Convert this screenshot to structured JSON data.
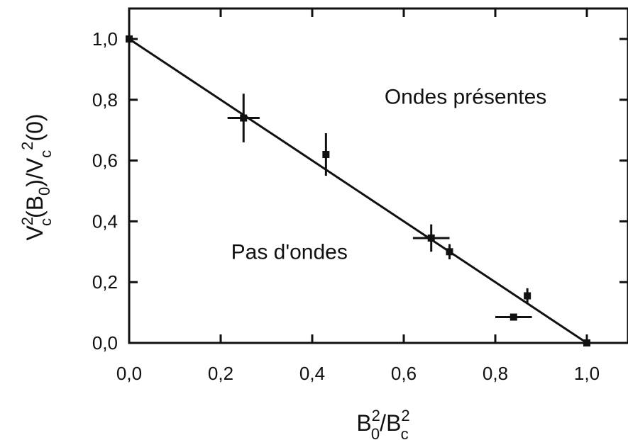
{
  "chart_data": {
    "type": "scatter",
    "xlabel": {
      "base1": "B",
      "sup1": "2",
      "sub1": "0",
      "slash": "/",
      "base2": "B",
      "sup2": "2",
      "sub2": "c"
    },
    "ylabel": {
      "base1": "V",
      "sup1": "2",
      "sub1": "c",
      "mid": "(B",
      "sub2": "0",
      "slash": ")/V",
      "sub3": "c",
      "sup3": "2",
      "tail": "(0)"
    },
    "xlim": [
      0,
      1.1
    ],
    "ylim": [
      0,
      1.1
    ],
    "xticks": [
      0,
      0.2,
      0.4,
      0.6,
      0.8,
      1.0
    ],
    "yticks": [
      0,
      0.2,
      0.4,
      0.6,
      0.8,
      1.0
    ],
    "xtick_labels": [
      "0,0",
      "0,2",
      "0,4",
      "0,6",
      "0,8",
      "1,0"
    ],
    "ytick_labels": [
      "0,0",
      "0,2",
      "0,4",
      "0,6",
      "0,8",
      "1,0"
    ],
    "grid": false,
    "points": [
      {
        "x": 0.0,
        "y": 1.0,
        "xerr": 0,
        "yerr": 0
      },
      {
        "x": 0.25,
        "y": 0.74,
        "xerr": 0.035,
        "yerr": 0.08
      },
      {
        "x": 0.43,
        "y": 0.62,
        "xerr": 0,
        "yerr": 0.07
      },
      {
        "x": 0.66,
        "y": 0.345,
        "xerr": 0.04,
        "yerr": 0.045
      },
      {
        "x": 0.7,
        "y": 0.3,
        "xerr": 0,
        "yerr": 0.025
      },
      {
        "x": 0.84,
        "y": 0.085,
        "xerr": 0.04,
        "yerr": 0
      },
      {
        "x": 0.87,
        "y": 0.155,
        "xerr": 0,
        "yerr": 0.025
      },
      {
        "x": 1.0,
        "y": 0.0,
        "xerr": 0,
        "yerr": 0
      }
    ],
    "fit_line": {
      "x": [
        0.0,
        1.0
      ],
      "y": [
        1.0,
        0.0
      ]
    },
    "annotations": [
      {
        "text": "Ondes présentes",
        "x": 0.735,
        "y": 0.81
      },
      {
        "text": "Pas d'ondes",
        "x": 0.35,
        "y": 0.3
      }
    ]
  }
}
